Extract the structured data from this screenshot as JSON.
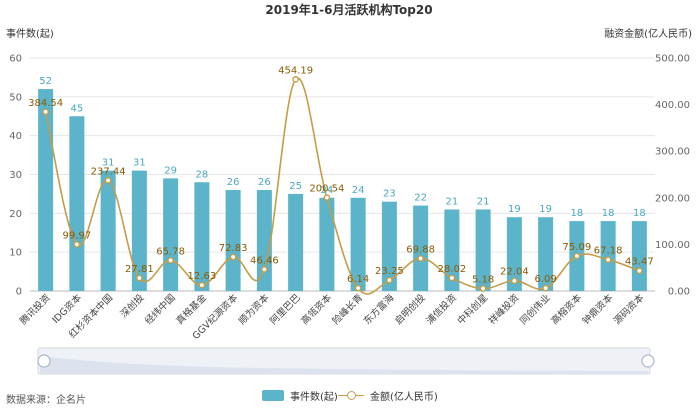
{
  "chart_data": {
    "type": "bar",
    "title": "2019年1-6月活跃机构Top20",
    "ylabel_left": "事件数(起)",
    "ylabel_right": "融资金额(亿人民币)",
    "ylim_left": [
      0,
      60
    ],
    "yticks_left": [
      "0",
      "10",
      "20",
      "30",
      "40",
      "50",
      "60"
    ],
    "ylim_right": [
      0,
      500
    ],
    "yticks_right": [
      "0.00",
      "100.00",
      "200.00",
      "300.00",
      "400.00",
      "500.00"
    ],
    "categories": [
      "腾讯投资",
      "IDG资本",
      "红杉资本中国",
      "深创投",
      "经纬中国",
      "真格基金",
      "GGV纪源资本",
      "顺为资本",
      "阿里巴巴",
      "高瓴资本",
      "险峰长青",
      "东方富海",
      "启明创投",
      "浦信投资",
      "中科创星",
      "祥峰投资",
      "同创伟业",
      "高榕资本",
      "钟鼎资本",
      "源码资本"
    ],
    "series": [
      {
        "name": "事件数(起)",
        "type": "bar",
        "axis": "left",
        "color": "#5bb4c9",
        "values": [
          52,
          45,
          31,
          31,
          29,
          28,
          26,
          26,
          25,
          24,
          24,
          23,
          22,
          21,
          21,
          19,
          19,
          18,
          18,
          18
        ],
        "labels": [
          "52",
          "45",
          "31",
          "31",
          "29",
          "28",
          "26",
          "26",
          "25",
          "24",
          "24",
          "23",
          "22",
          "21",
          "21",
          "19",
          "19",
          "18",
          "18",
          "18"
        ]
      },
      {
        "name": "金额(亿人民币)",
        "type": "line",
        "axis": "right",
        "color": "#c59d4a",
        "values": [
          384.54,
          99.97,
          237.44,
          27.81,
          65.78,
          12.63,
          72.83,
          46.46,
          454.19,
          200.54,
          6.14,
          23.25,
          69.88,
          28.02,
          5.18,
          22.04,
          6.09,
          75.09,
          67.18,
          43.47
        ],
        "labels": [
          "384.54",
          "99.97",
          "237.44",
          "27.81",
          "65.78",
          "12.63",
          "72.83",
          "46.46",
          "454.19",
          "200.54",
          "6.14",
          "23.25",
          "69.88",
          "28.02",
          "5.18",
          "22.04",
          "6.09",
          "75.09",
          "67.18",
          "43.47"
        ]
      }
    ],
    "grid": true,
    "legend_position": "bottom-center"
  },
  "source_text": "数据来源：企名片",
  "legend": {
    "bar_label": "事件数(起)",
    "line_label": "金额(亿人民币)"
  }
}
